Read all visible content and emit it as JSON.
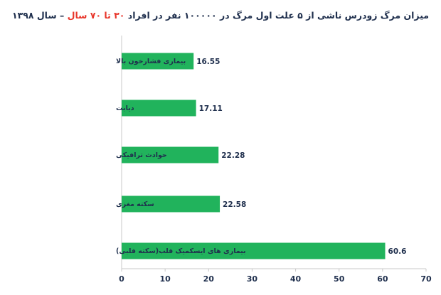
{
  "title": {
    "part1": "میزان مرگ زودرس ناشی از ۵ علت اول مرگ در ۱۰۰۰۰۰ نفر در افراد ",
    "highlight": "۳۰ تا ۷۰ سال",
    "part2": " – سال ۱۳۹۸"
  },
  "colors": {
    "bar": "#21b35c",
    "text": "#1f2f4d",
    "highlight": "#e8362b",
    "axis": "#c8c8c8"
  },
  "chart_data": {
    "type": "bar",
    "orientation": "horizontal",
    "categories": [
      "بیماری فشارخون بالا",
      "دیابت",
      "حوادث ترافیکی",
      "سکته مغزی",
      "بیماری های ایسکمیک قلب(سکته قلبی)"
    ],
    "values": [
      16.55,
      17.11,
      22.28,
      22.58,
      60.6
    ],
    "value_labels": [
      "16.55",
      "17.11",
      "22.28",
      "22.58",
      "60.6"
    ],
    "xlim": [
      0,
      70
    ],
    "xticks": [
      0,
      10,
      20,
      30,
      40,
      50,
      60,
      70
    ],
    "xtick_labels": [
      "0",
      "10",
      "20",
      "30",
      "40",
      "50",
      "60",
      "70"
    ],
    "grid": false,
    "legend": "none"
  }
}
